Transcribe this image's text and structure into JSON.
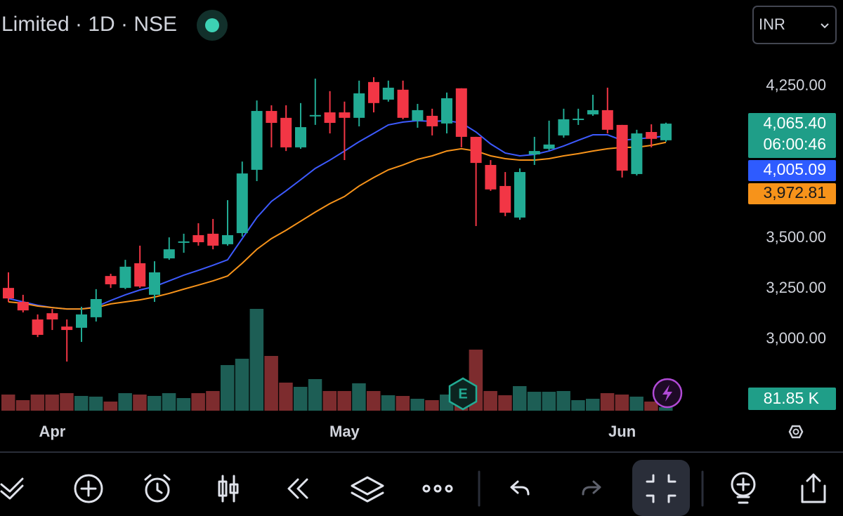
{
  "header": {
    "title": "Limited · 1D · NSE",
    "currency": "INR"
  },
  "chart_data": {
    "type": "candlestick",
    "categories": [
      null,
      null,
      null,
      "Apr",
      null,
      null,
      null,
      null,
      null,
      null,
      null,
      null,
      null,
      null,
      null,
      null,
      null,
      null,
      null,
      null,
      null,
      null,
      null,
      "May",
      null,
      null,
      null,
      null,
      null,
      null,
      null,
      null,
      null,
      null,
      null,
      null,
      null,
      null,
      null,
      null,
      null,
      null,
      "Jun",
      null,
      null,
      null
    ],
    "open": [
      3253,
      3184,
      3097,
      3128,
      3062,
      3056,
      3108,
      3312,
      3253,
      3375,
      3219,
      3399,
      3476,
      3514,
      3521,
      3469,
      3524,
      3837,
      4128,
      4094,
      3948,
      4101,
      4121,
      4121,
      4094,
      4271,
      4184,
      4233,
      4080,
      4104,
      4066,
      4240,
      4000,
      3861,
      3757,
      3601,
      3913,
      3941,
      4007,
      4083,
      4111,
      4132,
      4059,
      3816,
      4024,
      3983
    ],
    "high": [
      3330,
      3219,
      3122,
      3149,
      3097,
      3160,
      3247,
      3323,
      3392,
      3462,
      3385,
      3503,
      3521,
      3573,
      3594,
      3687,
      3878,
      4180,
      4156,
      4156,
      4167,
      4288,
      4226,
      4174,
      4278,
      4295,
      4278,
      4278,
      4163,
      4139,
      4219,
      4240,
      4000,
      3885,
      3826,
      3844,
      4000,
      4080,
      4139,
      4139,
      4208,
      4243,
      4059,
      4035,
      4062,
      4070
    ],
    "low": [
      3184,
      3132,
      3010,
      3045,
      2889,
      2986,
      3087,
      3253,
      3247,
      3253,
      3184,
      3392,
      3427,
      3462,
      3444,
      3462,
      3507,
      3781,
      3948,
      3930,
      3941,
      4059,
      4017,
      3885,
      4052,
      4121,
      4174,
      4087,
      4045,
      4007,
      4017,
      3948,
      3559,
      3733,
      3608,
      3590,
      3861,
      3934,
      3996,
      4059,
      4104,
      4017,
      3799,
      3809,
      3948,
      3976
    ],
    "close": [
      3201,
      3142,
      3021,
      3097,
      3045,
      3122,
      3198,
      3271,
      3358,
      3260,
      3330,
      3444,
      3483,
      3479,
      3462,
      3514,
      3819,
      4128,
      4069,
      3948,
      4048,
      4108,
      4069,
      4094,
      4215,
      4167,
      4243,
      4094,
      4132,
      4052,
      4191,
      4000,
      3871,
      3740,
      3625,
      3826,
      3930,
      3962,
      4087,
      4090,
      4132,
      4035,
      3833,
      4017,
      3990,
      4065.4
    ],
    "up_color": "#22ab94",
    "down_color": "#f23645",
    "volume": [
      371,
      242,
      371,
      371,
      403,
      339,
      323,
      210,
      403,
      371,
      339,
      403,
      290,
      403,
      452,
      1048,
      1194,
      2339,
      1258,
      645,
      548,
      726,
      452,
      452,
      629,
      452,
      355,
      339,
      274,
      242,
      371,
      323,
      1403,
      452,
      355,
      565,
      435,
      435,
      452,
      242,
      274,
      403,
      371,
      323,
      210,
      81.85
    ],
    "volume_up_color": "#1d5e55",
    "volume_down_color": "#7d2c2e",
    "vlim": [
      0,
      2500
    ],
    "ma_series": [
      {
        "color": "#3d5afe",
        "values": [
          3201,
          3184,
          3167,
          3156,
          3149,
          3149,
          3160,
          3191,
          3219,
          3243,
          3260,
          3288,
          3316,
          3340,
          3365,
          3392,
          3497,
          3601,
          3681,
          3733,
          3788,
          3844,
          3885,
          3930,
          3976,
          4017,
          4059,
          4073,
          4080,
          4076,
          4080,
          4069,
          4024,
          3965,
          3920,
          3906,
          3913,
          3930,
          3955,
          3983,
          4010,
          4010,
          3983,
          3990,
          3996,
          4005.09
        ]
      },
      {
        "color": "#f7931a",
        "values": [
          3184,
          3177,
          3163,
          3156,
          3149,
          3149,
          3156,
          3174,
          3184,
          3194,
          3208,
          3226,
          3247,
          3267,
          3288,
          3312,
          3375,
          3444,
          3497,
          3538,
          3583,
          3628,
          3670,
          3705,
          3757,
          3799,
          3837,
          3861,
          3889,
          3906,
          3930,
          3941,
          3930,
          3906,
          3892,
          3885,
          3885,
          3892,
          3906,
          3917,
          3930,
          3941,
          3948,
          3948,
          3958,
          3972.81
        ]
      }
    ],
    "ylim": [
      2646,
      4451
    ],
    "yticks": [
      {
        "value": 3000,
        "label": "3,000.00"
      },
      {
        "value": 3250,
        "label": "3,250.00"
      },
      {
        "value": 3500,
        "label": "3,500.00"
      },
      {
        "value": 4250,
        "label": "4,250.00"
      }
    ],
    "last_price": {
      "value": 4065.4,
      "label": "4,065.40"
    },
    "countdown": "06:00:46",
    "ma_labels": [
      "4,005.09",
      "3,972.81"
    ],
    "last_volume_label": "81.85 K"
  }
}
